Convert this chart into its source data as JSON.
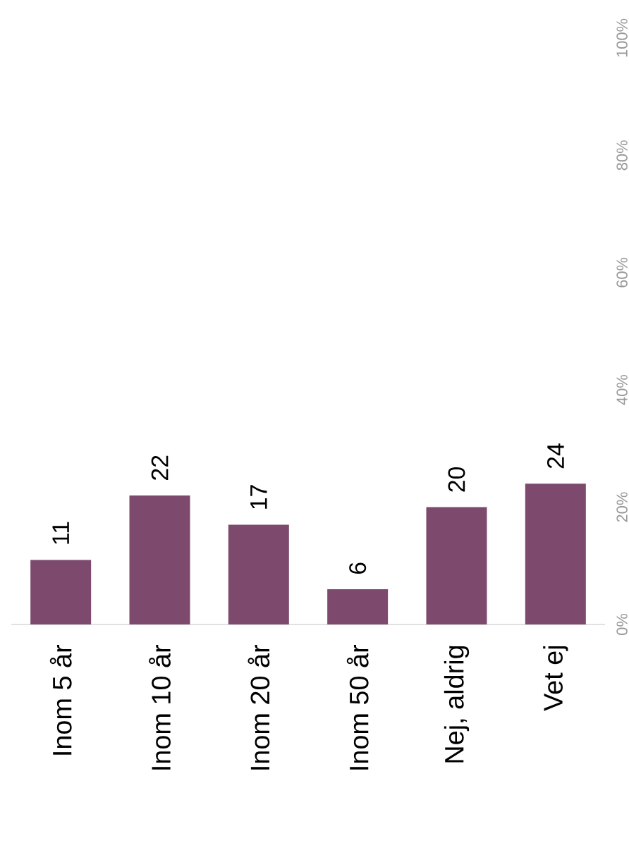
{
  "chart_data": {
    "type": "bar",
    "categories": [
      "Inom 5 år",
      "Inom 10 år",
      "Inom 20 år",
      "Inom 50 år",
      "Nej, aldrig",
      "Vet ej"
    ],
    "values": [
      11,
      22,
      17,
      6,
      20,
      24
    ],
    "color": "#7d4a6e",
    "ylim": [
      0,
      100
    ],
    "yticks": [
      {
        "value": 0,
        "label": "0%"
      },
      {
        "value": 20,
        "label": "20%"
      },
      {
        "value": 40,
        "label": "40%"
      },
      {
        "value": 60,
        "label": "60%"
      },
      {
        "value": 80,
        "label": "80%"
      },
      {
        "value": 100,
        "label": "100%"
      }
    ],
    "data_labels": true,
    "grid": false
  }
}
